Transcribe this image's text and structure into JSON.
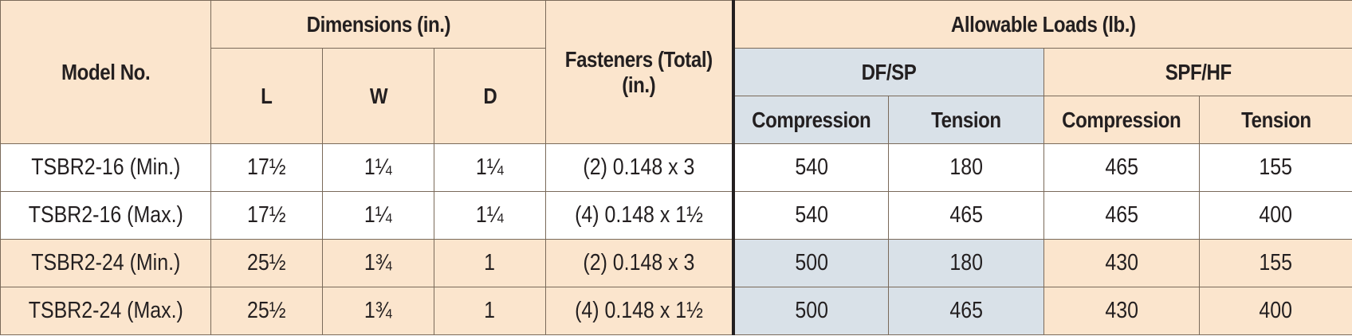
{
  "headers": {
    "model": "Model No.",
    "dimensions": "Dimensions (in.)",
    "L": "L",
    "W": "W",
    "D": "D",
    "fasteners": "Fasteners (Total) (in.)",
    "allowable_loads": "Allowable Loads (lb.)",
    "df_sp": "DF/SP",
    "spf_hf": "SPF/HF",
    "compression": "Compression",
    "tension": "Tension"
  },
  "rows": [
    {
      "model": "TSBR2-16 (Min.)",
      "L": "17½",
      "W": "1¼",
      "D": "1¼",
      "fasteners": "(2) 0.148 x 3",
      "df_comp": "540",
      "df_tens": "180",
      "spf_comp": "465",
      "spf_tens": "155"
    },
    {
      "model": "TSBR2-16 (Max.)",
      "L": "17½",
      "W": "1¼",
      "D": "1¼",
      "fasteners": "(4) 0.148 x 1½",
      "df_comp": "540",
      "df_tens": "465",
      "spf_comp": "465",
      "spf_tens": "400"
    },
    {
      "model": "TSBR2-24 (Min.)",
      "L": "25½",
      "W": "1¾",
      "D": "1",
      "fasteners": "(2) 0.148 x 3",
      "df_comp": "500",
      "df_tens": "180",
      "spf_comp": "430",
      "spf_tens": "155"
    },
    {
      "model": "TSBR2-24 (Max.)",
      "L": "25½",
      "W": "1¾",
      "D": "1",
      "fasteners": "(4) 0.148 x 1½",
      "df_comp": "500",
      "df_tens": "465",
      "spf_comp": "430",
      "spf_tens": "400"
    }
  ],
  "colors": {
    "header_tan": "#fbe5cd",
    "header_blue": "#d9e1e8",
    "border": "#7a6a5a",
    "text": "#231f20"
  }
}
